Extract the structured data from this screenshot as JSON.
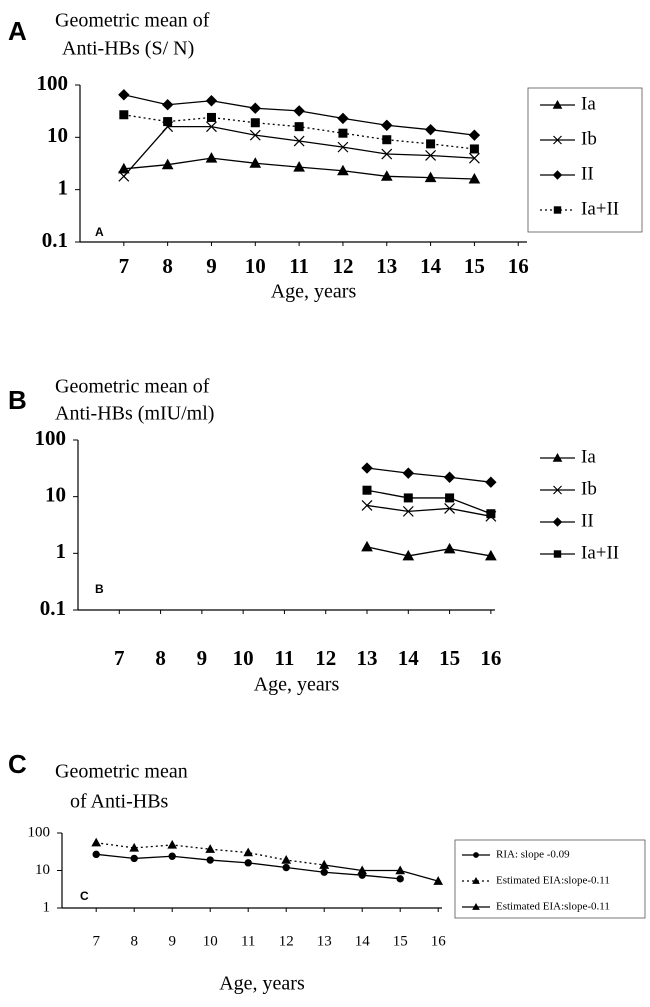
{
  "chart_data": [
    {
      "type": "line",
      "panel_label": "A",
      "title_lines": [
        "Geometric mean of",
        "Anti-HBs (S/ N)"
      ],
      "annotation": "A",
      "x_label": "Age, years",
      "x": [
        7,
        8,
        9,
        10,
        11,
        12,
        13,
        14,
        15
      ],
      "xlim": [
        6,
        16.2
      ],
      "xticks": [
        7,
        8,
        9,
        10,
        11,
        12,
        13,
        14,
        15,
        16
      ],
      "ylim": [
        0.1,
        100
      ],
      "yticks": [
        0.1,
        1,
        10,
        100
      ],
      "log_y": true,
      "legend": "right",
      "series": [
        {
          "name": "Ia",
          "marker": "triangle",
          "dash": "solid",
          "color": "#000000",
          "values": [
            2.5,
            3,
            4,
            3.2,
            2.7,
            2.3,
            1.8,
            1.7,
            1.6
          ]
        },
        {
          "name": "Ib",
          "marker": "x",
          "dash": "solid",
          "color": "#000000",
          "values": [
            1.8,
            16,
            16,
            11,
            8.5,
            6.5,
            4.8,
            4.5,
            4
          ]
        },
        {
          "name": "II",
          "marker": "diamond",
          "dash": "solid",
          "color": "#000000",
          "values": [
            65,
            42,
            50,
            36,
            32,
            23,
            17,
            14,
            11
          ]
        },
        {
          "name": "Ia+II",
          "marker": "square",
          "dash": "dotted",
          "color": "#000000",
          "values": [
            27,
            20,
            24,
            19,
            16,
            12,
            9,
            7.5,
            6
          ]
        }
      ]
    },
    {
      "type": "line",
      "panel_label": "B",
      "title_lines": [
        "Geometric mean of",
        "Anti-HBs (mIU/ml)"
      ],
      "annotation": "B",
      "x_label": "Age, years",
      "x": [
        13,
        14,
        15,
        16
      ],
      "xlim": [
        6,
        16.1
      ],
      "xticks": [
        7,
        8,
        9,
        10,
        11,
        12,
        13,
        14,
        15,
        16
      ],
      "ylim": [
        0.1,
        100
      ],
      "yticks": [
        0.1,
        1,
        10,
        100
      ],
      "log_y": true,
      "legend": "right",
      "series": [
        {
          "name": "Ia",
          "marker": "triangle",
          "dash": "solid",
          "color": "#000000",
          "values": [
            1.3,
            0.9,
            1.2,
            0.9
          ]
        },
        {
          "name": "Ib",
          "marker": "x",
          "dash": "solid",
          "color": "#000000",
          "values": [
            7,
            5.5,
            6.2,
            4.5
          ]
        },
        {
          "name": "II",
          "marker": "diamond",
          "dash": "solid",
          "color": "#000000",
          "values": [
            32,
            26,
            22,
            18
          ]
        },
        {
          "name": "Ia+II",
          "marker": "square",
          "dash": "solid",
          "color": "#000000",
          "values": [
            13,
            9.5,
            9.5,
            5
          ]
        }
      ]
    },
    {
      "type": "line",
      "panel_label": "C",
      "title_lines": [
        "Geometric mean",
        "of Anti-HBs"
      ],
      "annotation": "C",
      "x_label": "Age, years",
      "x": [
        7,
        8,
        9,
        10,
        11,
        12,
        13,
        14,
        15,
        16
      ],
      "xlim": [
        6.1,
        16.1
      ],
      "xticks": [
        7,
        8,
        9,
        10,
        11,
        12,
        13,
        14,
        15,
        16
      ],
      "ylim": [
        1,
        100
      ],
      "yticks": [
        1,
        10,
        100
      ],
      "log_y": true,
      "legend": "right",
      "series": [
        {
          "name": "RIA: slope -0.09",
          "marker": "circle",
          "dash": "solid",
          "color": "#000000",
          "values": [
            27,
            21,
            24,
            19,
            16,
            12,
            9,
            7.5,
            6,
            null
          ]
        },
        {
          "name": "Estimated EIA:slope-0.11",
          "marker": "triangle",
          "dash": "dotted",
          "color": "#000000",
          "values": [
            55,
            40,
            48,
            37,
            30,
            19,
            14,
            null,
            null,
            null
          ]
        },
        {
          "name": "Estimated EIA:slope-0.11",
          "marker": "triangle",
          "dash": "solid",
          "color": "#000000",
          "values": [
            null,
            null,
            null,
            null,
            null,
            null,
            14,
            10,
            10,
            5.2
          ]
        }
      ]
    }
  ]
}
